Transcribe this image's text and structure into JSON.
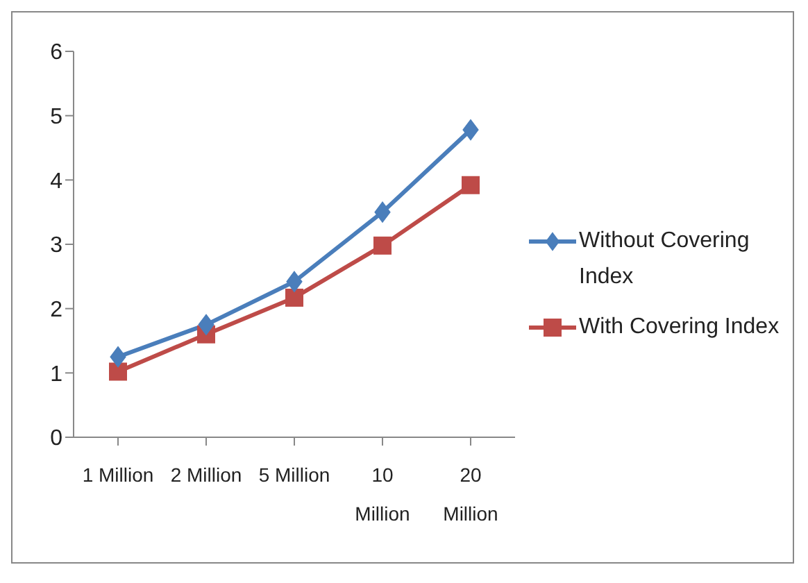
{
  "chart_data": {
    "type": "line",
    "categories": [
      "1 Million",
      "2 Million",
      "5 Million",
      "10 Million",
      "20 Million"
    ],
    "series": [
      {
        "name": "Without Covering Index",
        "color": "#4a7ebb",
        "marker": "diamond",
        "values": [
          1.25,
          1.75,
          2.42,
          3.5,
          4.78
        ]
      },
      {
        "name": "With Covering Index",
        "color": "#be4b48",
        "marker": "square",
        "values": [
          1.02,
          1.6,
          2.17,
          2.98,
          3.92
        ]
      }
    ],
    "ylim": [
      0,
      6
    ],
    "yticks": [
      0,
      1,
      2,
      3,
      4,
      5,
      6
    ],
    "grid": false,
    "legend": "right"
  }
}
